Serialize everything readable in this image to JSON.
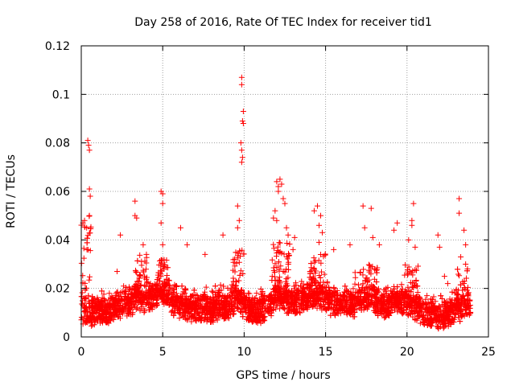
{
  "chart_data": {
    "type": "scatter",
    "title": "Day 258 of 2016, Rate Of TEC Index for receiver tid1",
    "xlabel": "GPS time / hours",
    "ylabel": "ROTI / TECUs",
    "xlim": [
      0,
      25
    ],
    "ylim": [
      0,
      0.12
    ],
    "grid": true,
    "marker": "+",
    "series_color": "#ff0000",
    "x_ticks": [
      0,
      5,
      10,
      15,
      20,
      25
    ],
    "x_tick_labels": [
      "0",
      "5",
      "10",
      "15",
      "20",
      "25"
    ],
    "y_ticks": [
      0,
      0.02,
      0.04,
      0.06,
      0.08,
      0.1,
      0.12
    ],
    "y_tick_labels": [
      "0",
      "0.02",
      "0.04",
      "0.06",
      "0.08",
      "0.1",
      "0.12"
    ],
    "sample_count_estimate": 4500,
    "notable_points": [
      {
        "x": 0.1,
        "y": 0.047
      },
      {
        "x": 0.2,
        "y": 0.048
      },
      {
        "x": 0.35,
        "y": 0.036
      },
      {
        "x": 0.4,
        "y": 0.081
      },
      {
        "x": 0.45,
        "y": 0.079
      },
      {
        "x": 0.5,
        "y": 0.077
      },
      {
        "x": 0.5,
        "y": 0.061
      },
      {
        "x": 0.5,
        "y": 0.05
      },
      {
        "x": 0.55,
        "y": 0.058
      },
      {
        "x": 2.4,
        "y": 0.042
      },
      {
        "x": 2.2,
        "y": 0.027
      },
      {
        "x": 3.3,
        "y": 0.056
      },
      {
        "x": 3.3,
        "y": 0.05
      },
      {
        "x": 3.4,
        "y": 0.049
      },
      {
        "x": 3.8,
        "y": 0.038
      },
      {
        "x": 4.0,
        "y": 0.034
      },
      {
        "x": 4.9,
        "y": 0.06
      },
      {
        "x": 5.0,
        "y": 0.059
      },
      {
        "x": 5.0,
        "y": 0.055
      },
      {
        "x": 4.9,
        "y": 0.047
      },
      {
        "x": 5.0,
        "y": 0.038
      },
      {
        "x": 6.1,
        "y": 0.045
      },
      {
        "x": 6.5,
        "y": 0.038
      },
      {
        "x": 7.6,
        "y": 0.034
      },
      {
        "x": 8.7,
        "y": 0.042
      },
      {
        "x": 9.6,
        "y": 0.054
      },
      {
        "x": 9.7,
        "y": 0.048
      },
      {
        "x": 9.6,
        "y": 0.045
      },
      {
        "x": 9.85,
        "y": 0.107
      },
      {
        "x": 9.85,
        "y": 0.104
      },
      {
        "x": 9.95,
        "y": 0.093
      },
      {
        "x": 9.9,
        "y": 0.089
      },
      {
        "x": 9.95,
        "y": 0.088
      },
      {
        "x": 9.8,
        "y": 0.08
      },
      {
        "x": 9.85,
        "y": 0.077
      },
      {
        "x": 9.9,
        "y": 0.074
      },
      {
        "x": 9.85,
        "y": 0.072
      },
      {
        "x": 12.0,
        "y": 0.064
      },
      {
        "x": 12.1,
        "y": 0.062
      },
      {
        "x": 12.2,
        "y": 0.065
      },
      {
        "x": 12.3,
        "y": 0.063
      },
      {
        "x": 12.4,
        "y": 0.057
      },
      {
        "x": 12.1,
        "y": 0.06
      },
      {
        "x": 11.8,
        "y": 0.049
      },
      {
        "x": 11.9,
        "y": 0.052
      },
      {
        "x": 12.0,
        "y": 0.048
      },
      {
        "x": 12.5,
        "y": 0.055
      },
      {
        "x": 12.6,
        "y": 0.045
      },
      {
        "x": 12.7,
        "y": 0.042
      },
      {
        "x": 13.0,
        "y": 0.036
      },
      {
        "x": 13.1,
        "y": 0.041
      },
      {
        "x": 14.3,
        "y": 0.052
      },
      {
        "x": 14.5,
        "y": 0.054
      },
      {
        "x": 14.7,
        "y": 0.05
      },
      {
        "x": 14.6,
        "y": 0.046
      },
      {
        "x": 14.8,
        "y": 0.043
      },
      {
        "x": 14.6,
        "y": 0.039
      },
      {
        "x": 15.5,
        "y": 0.036
      },
      {
        "x": 16.5,
        "y": 0.038
      },
      {
        "x": 17.3,
        "y": 0.054
      },
      {
        "x": 17.8,
        "y": 0.053
      },
      {
        "x": 17.4,
        "y": 0.045
      },
      {
        "x": 17.9,
        "y": 0.041
      },
      {
        "x": 18.3,
        "y": 0.038
      },
      {
        "x": 19.2,
        "y": 0.044
      },
      {
        "x": 19.4,
        "y": 0.047
      },
      {
        "x": 20.4,
        "y": 0.055
      },
      {
        "x": 20.3,
        "y": 0.048
      },
      {
        "x": 20.3,
        "y": 0.046
      },
      {
        "x": 20.1,
        "y": 0.04
      },
      {
        "x": 20.5,
        "y": 0.037
      },
      {
        "x": 21.9,
        "y": 0.042
      },
      {
        "x": 22.0,
        "y": 0.037
      },
      {
        "x": 22.5,
        "y": 0.022
      },
      {
        "x": 22.3,
        "y": 0.025
      },
      {
        "x": 23.2,
        "y": 0.057
      },
      {
        "x": 23.2,
        "y": 0.051
      },
      {
        "x": 23.5,
        "y": 0.044
      },
      {
        "x": 23.6,
        "y": 0.038
      },
      {
        "x": 23.3,
        "y": 0.033
      },
      {
        "x": 23.6,
        "y": 0.03
      }
    ],
    "baseline_points": [
      {
        "x": 0.0,
        "y": 0.009
      },
      {
        "x": 0.5,
        "y": 0.008
      },
      {
        "x": 1.0,
        "y": 0.01
      },
      {
        "x": 1.5,
        "y": 0.009
      },
      {
        "x": 2.0,
        "y": 0.011
      },
      {
        "x": 2.5,
        "y": 0.012
      },
      {
        "x": 3.0,
        "y": 0.012
      },
      {
        "x": 3.5,
        "y": 0.015
      },
      {
        "x": 4.0,
        "y": 0.013
      },
      {
        "x": 4.5,
        "y": 0.016
      },
      {
        "x": 5.0,
        "y": 0.017
      },
      {
        "x": 5.5,
        "y": 0.014
      },
      {
        "x": 6.0,
        "y": 0.012
      },
      {
        "x": 6.5,
        "y": 0.011
      },
      {
        "x": 7.0,
        "y": 0.01
      },
      {
        "x": 7.5,
        "y": 0.011
      },
      {
        "x": 8.0,
        "y": 0.01
      },
      {
        "x": 8.5,
        "y": 0.012
      },
      {
        "x": 9.0,
        "y": 0.011
      },
      {
        "x": 9.5,
        "y": 0.014
      },
      {
        "x": 10.0,
        "y": 0.012
      },
      {
        "x": 10.5,
        "y": 0.01
      },
      {
        "x": 11.0,
        "y": 0.01
      },
      {
        "x": 11.5,
        "y": 0.012
      },
      {
        "x": 12.0,
        "y": 0.015
      },
      {
        "x": 12.5,
        "y": 0.014
      },
      {
        "x": 13.0,
        "y": 0.013
      },
      {
        "x": 13.5,
        "y": 0.014
      },
      {
        "x": 14.0,
        "y": 0.015
      },
      {
        "x": 14.5,
        "y": 0.016
      },
      {
        "x": 15.0,
        "y": 0.014
      },
      {
        "x": 15.5,
        "y": 0.013
      },
      {
        "x": 16.0,
        "y": 0.012
      },
      {
        "x": 16.5,
        "y": 0.013
      },
      {
        "x": 17.0,
        "y": 0.012
      },
      {
        "x": 17.5,
        "y": 0.014
      },
      {
        "x": 18.0,
        "y": 0.013
      },
      {
        "x": 18.5,
        "y": 0.012
      },
      {
        "x": 19.0,
        "y": 0.013
      },
      {
        "x": 19.5,
        "y": 0.014
      },
      {
        "x": 20.0,
        "y": 0.012
      },
      {
        "x": 20.5,
        "y": 0.011
      },
      {
        "x": 21.0,
        "y": 0.009
      },
      {
        "x": 21.5,
        "y": 0.008
      },
      {
        "x": 22.0,
        "y": 0.007
      },
      {
        "x": 22.5,
        "y": 0.008
      },
      {
        "x": 23.0,
        "y": 0.01
      },
      {
        "x": 23.5,
        "y": 0.011
      },
      {
        "x": 23.9,
        "y": 0.012
      }
    ],
    "activity_regions": [
      {
        "x_from": 0.0,
        "x_to": 0.6,
        "y_peak": 0.05
      },
      {
        "x_from": 3.2,
        "x_to": 4.2,
        "y_peak": 0.034
      },
      {
        "x_from": 4.6,
        "x_to": 5.4,
        "y_peak": 0.032
      },
      {
        "x_from": 9.3,
        "x_to": 10.0,
        "y_peak": 0.036
      },
      {
        "x_from": 11.7,
        "x_to": 12.8,
        "y_peak": 0.04
      },
      {
        "x_from": 14.0,
        "x_to": 15.0,
        "y_peak": 0.036
      },
      {
        "x_from": 16.8,
        "x_to": 18.2,
        "y_peak": 0.03
      },
      {
        "x_from": 19.8,
        "x_to": 20.7,
        "y_peak": 0.03
      },
      {
        "x_from": 23.0,
        "x_to": 23.8,
        "y_peak": 0.03
      }
    ]
  }
}
